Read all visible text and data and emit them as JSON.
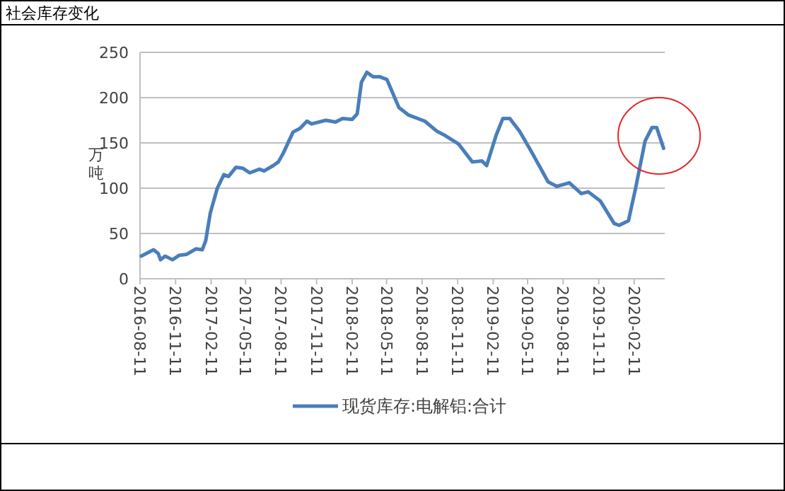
{
  "chart_data": {
    "type": "line",
    "title": "社会库存变化",
    "ylabel": "万吨",
    "legend": "bottom",
    "grid": "y",
    "xlim": [
      "2016-08-11",
      "2020-04-30"
    ],
    "xticks": [
      "2016-08-11",
      "2016-11-11",
      "2017-02-11",
      "2017-05-11",
      "2017-08-11",
      "2017-11-11",
      "2018-02-11",
      "2018-05-11",
      "2018-08-11",
      "2018-11-11",
      "2019-02-11",
      "2019-05-11",
      "2019-08-11",
      "2019-11-11",
      "2020-02-11"
    ],
    "ylim": [
      0,
      250
    ],
    "yticks": [
      0,
      50,
      100,
      150,
      200,
      250
    ],
    "series": [
      {
        "name": "现货库存:电解铝:合计",
        "color": "#4a7ebb",
        "x": [
          "2016-08-14",
          "2016-09-15",
          "2016-09-27",
          "2016-10-03",
          "2016-10-15",
          "2016-11-03",
          "2016-11-21",
          "2016-12-10",
          "2017-01-03",
          "2017-01-19",
          "2017-01-28",
          "2017-02-09",
          "2017-02-27",
          "2017-03-16",
          "2017-03-28",
          "2017-04-16",
          "2017-05-04",
          "2017-05-22",
          "2017-06-16",
          "2017-06-28",
          "2017-07-22",
          "2017-08-04",
          "2017-08-16",
          "2017-09-11",
          "2017-09-29",
          "2017-10-17",
          "2017-10-29",
          "2017-12-05",
          "2017-12-30",
          "2018-01-17",
          "2018-02-11",
          "2018-02-24",
          "2018-03-07",
          "2018-03-21",
          "2018-04-06",
          "2018-04-24",
          "2018-05-12",
          "2018-06-12",
          "2018-07-06",
          "2018-08-18",
          "2018-09-18",
          "2018-10-06",
          "2018-11-13",
          "2018-12-19",
          "2019-01-13",
          "2019-01-25",
          "2019-02-19",
          "2019-03-08",
          "2019-03-26",
          "2019-04-20",
          "2019-05-20",
          "2019-07-03",
          "2019-07-26",
          "2019-08-27",
          "2019-09-27",
          "2019-10-15",
          "2019-11-15",
          "2019-12-21",
          "2020-01-03",
          "2020-01-27",
          "2020-02-14",
          "2020-03-10",
          "2020-03-28",
          "2020-04-09",
          "2020-04-27"
        ],
        "values": [
          25,
          32,
          28,
          21,
          25,
          21,
          26,
          27,
          33,
          32,
          42,
          73,
          100,
          115,
          113,
          123,
          122,
          117,
          121,
          119,
          125,
          129,
          138,
          162,
          166,
          174,
          171,
          175,
          173,
          177,
          176,
          182,
          217,
          228,
          223,
          223,
          220,
          189,
          181,
          174,
          163,
          159,
          149,
          129,
          130,
          125,
          159,
          177,
          177,
          163,
          141,
          107,
          102,
          106,
          94,
          96,
          86,
          61,
          59,
          64,
          99,
          152,
          167,
          167,
          144
        ]
      }
    ]
  }
}
